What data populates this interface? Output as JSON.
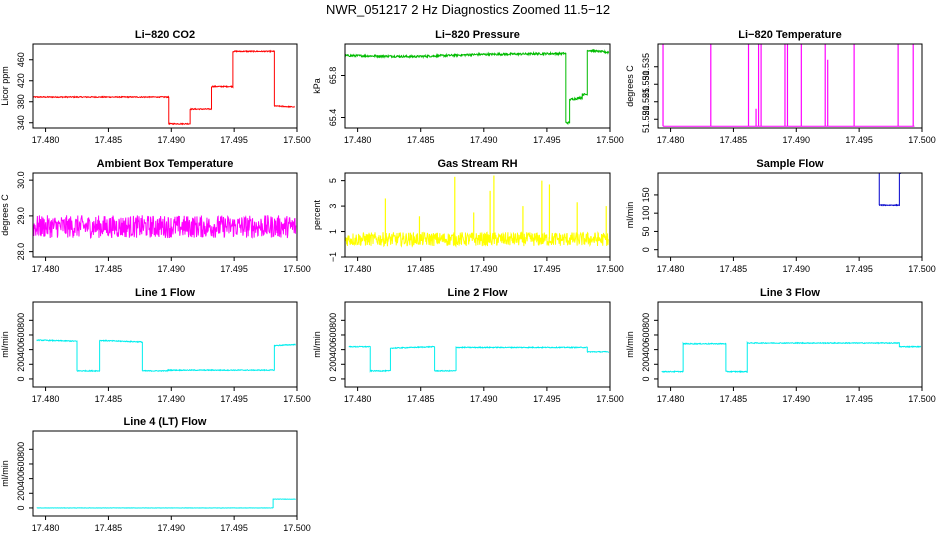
{
  "title": "NWR_051217  2 Hz Diagnostics Zoomed 11.5−12",
  "chart_data": [
    {
      "type": "line",
      "title": "Li−820 CO2",
      "ylabel": "Licor ppm",
      "color": "#ff0000",
      "xlim": [
        17.479,
        17.5
      ],
      "ylim": [
        330,
        490
      ],
      "x_ticks": [
        17.48,
        17.485,
        17.49,
        17.495,
        17.5
      ],
      "x_tick_labels": [
        "17.480",
        "17.485",
        "17.490",
        "17.495",
        "17.500"
      ],
      "y_ticks": [
        340,
        380,
        420,
        460
      ],
      "y_tick_labels": [
        "340",
        "380",
        "420",
        "460"
      ],
      "noise": 1,
      "x": [
        17.479,
        17.4898,
        17.4898,
        17.4915,
        17.4915,
        17.4932,
        17.4932,
        17.4949,
        17.4949,
        17.4982,
        17.4982,
        17.4998
      ],
      "y": [
        389,
        389,
        338,
        338,
        366,
        366,
        409,
        409,
        476,
        476,
        372,
        370
      ]
    },
    {
      "type": "line",
      "title": "Li−820 Pressure",
      "ylabel": "kPa",
      "color": "#00bb00",
      "xlim": [
        17.479,
        17.5
      ],
      "ylim": [
        65.3,
        66.1
      ],
      "x_ticks": [
        17.48,
        17.485,
        17.49,
        17.495,
        17.5
      ],
      "x_tick_labels": [
        "17.480",
        "17.485",
        "17.490",
        "17.495",
        "17.500"
      ],
      "y_ticks": [
        65.4,
        65.8
      ],
      "y_tick_labels": [
        "65.4",
        "65.8"
      ],
      "noise": 0.01,
      "x": [
        17.479,
        17.4845,
        17.4895,
        17.4965,
        17.4965,
        17.4968,
        17.4968,
        17.4978,
        17.4978,
        17.4982,
        17.4982,
        17.4999
      ],
      "y": [
        65.99,
        65.98,
        66.0,
        66.01,
        65.35,
        65.35,
        65.57,
        65.59,
        65.62,
        65.62,
        66.04,
        66.02
      ]
    },
    {
      "type": "line",
      "title": "Li−820 Temperature",
      "ylabel": "degrees C",
      "color": "#ff00ff",
      "xlim": [
        17.479,
        17.5
      ],
      "ylim": [
        51.5175,
        51.5415
      ],
      "x_ticks": [
        17.48,
        17.485,
        17.49,
        17.495,
        17.5
      ],
      "x_tick_labels": [
        "17.480",
        "17.485",
        "17.490",
        "17.495",
        "17.500"
      ],
      "y_ticks": [
        51.52,
        51.525,
        51.53,
        51.535
      ],
      "y_tick_labels": [
        "51.520",
        "51.525",
        "51.530",
        "51.535"
      ],
      "baseline": 51.518,
      "spikes": [
        [
          17.4794,
          51.5415
        ],
        [
          17.4832,
          51.5415
        ],
        [
          17.4862,
          51.5415
        ],
        [
          17.4868,
          51.523
        ],
        [
          17.487,
          51.5415
        ],
        [
          17.4872,
          51.5415
        ],
        [
          17.4891,
          51.5415
        ],
        [
          17.4893,
          51.5415
        ],
        [
          17.4904,
          51.5415
        ],
        [
          17.4923,
          51.5415
        ],
        [
          17.4925,
          51.537
        ],
        [
          17.4946,
          51.5415
        ],
        [
          17.4981,
          51.5415
        ],
        [
          17.4993,
          51.5415
        ]
      ]
    },
    {
      "type": "line",
      "title": "Ambient Box Temperature",
      "ylabel": "degrees C",
      "color": "#ff00ff",
      "xlim": [
        17.479,
        17.5
      ],
      "ylim": [
        27.85,
        30.2
      ],
      "x_ticks": [
        17.48,
        17.485,
        17.49,
        17.495,
        17.5
      ],
      "x_tick_labels": [
        "17.480",
        "17.485",
        "17.490",
        "17.495",
        "17.500"
      ],
      "y_ticks": [
        28.0,
        29.0,
        30.0
      ],
      "y_tick_labels": [
        "28.0",
        "29.0",
        "30.0"
      ],
      "noise": 0.32,
      "x": [
        17.479,
        17.4999
      ],
      "y": [
        28.7,
        28.7
      ]
    },
    {
      "type": "line",
      "title": "Gas Stream RH",
      "ylabel": "percent",
      "color": "#ffff00",
      "xlim": [
        17.479,
        17.5
      ],
      "ylim": [
        -1,
        5.6
      ],
      "x_ticks": [
        17.48,
        17.485,
        17.49,
        17.495,
        17.5
      ],
      "x_tick_labels": [
        "17.480",
        "17.485",
        "17.490",
        "17.495",
        "17.500"
      ],
      "y_ticks": [
        -1,
        1,
        3,
        5
      ],
      "y_tick_labels": [
        "−1",
        "1",
        "3",
        "5"
      ],
      "noise": 0.55,
      "x": [
        17.479,
        17.4999
      ],
      "y": [
        0.4,
        0.4
      ],
      "spikes": [
        [
          17.4822,
          3.6
        ],
        [
          17.4849,
          2.2
        ],
        [
          17.4877,
          5.3
        ],
        [
          17.4892,
          2.5
        ],
        [
          17.4905,
          4.2
        ],
        [
          17.4908,
          5.4
        ],
        [
          17.4931,
          3.0
        ],
        [
          17.4946,
          5.0
        ],
        [
          17.4952,
          4.7
        ],
        [
          17.4974,
          3.3
        ],
        [
          17.4997,
          3.0
        ]
      ]
    },
    {
      "type": "line",
      "title": "Sample Flow",
      "ylabel": "ml/min",
      "color": "#0000cc",
      "xlim": [
        17.479,
        17.5
      ],
      "ylim": [
        -20,
        210
      ],
      "x_ticks": [
        17.48,
        17.485,
        17.49,
        17.495,
        17.5
      ],
      "x_tick_labels": [
        "17.480",
        "17.485",
        "17.490",
        "17.495",
        "17.500"
      ],
      "y_ticks": [
        0,
        50,
        100,
        150
      ],
      "y_tick_labels": [
        "0",
        "50",
        "100",
        "150"
      ],
      "noise": 1.2,
      "x": [
        17.4966,
        17.4966,
        17.4982,
        17.4982,
        17.4984
      ],
      "y": [
        210,
        122,
        122,
        210,
        210
      ]
    },
    {
      "type": "line",
      "title": "Line 1 Flow",
      "ylabel": "ml/min",
      "color": "#00eeee",
      "xlim": [
        17.479,
        17.5
      ],
      "ylim": [
        -110,
        1050
      ],
      "x_ticks": [
        17.48,
        17.485,
        17.49,
        17.495,
        17.5
      ],
      "x_tick_labels": [
        "17.480",
        "17.485",
        "17.490",
        "17.495",
        "17.500"
      ],
      "y_ticks": [
        0,
        200,
        400,
        600,
        800
      ],
      "y_tick_labels": [
        "0",
        "200",
        "400",
        "600",
        "800"
      ],
      "noise": 6,
      "x": [
        17.4793,
        17.4825,
        17.4825,
        17.4843,
        17.4843,
        17.4877,
        17.4877,
        17.4897,
        17.4897,
        17.4982,
        17.4982,
        17.4999
      ],
      "y": [
        530,
        515,
        110,
        110,
        525,
        505,
        110,
        110,
        120,
        120,
        455,
        470
      ]
    },
    {
      "type": "line",
      "title": "Line 2 Flow",
      "ylabel": "ml/min",
      "color": "#00eeee",
      "xlim": [
        17.479,
        17.5
      ],
      "ylim": [
        -110,
        1050
      ],
      "x_ticks": [
        17.48,
        17.485,
        17.49,
        17.495,
        17.5
      ],
      "x_tick_labels": [
        "17.480",
        "17.485",
        "17.490",
        "17.495",
        "17.500"
      ],
      "y_ticks": [
        0,
        200,
        400,
        600,
        800
      ],
      "y_tick_labels": [
        "0",
        "200",
        "400",
        "600",
        "800"
      ],
      "noise": 6,
      "x": [
        17.4793,
        17.481,
        17.481,
        17.4826,
        17.4826,
        17.4861,
        17.4861,
        17.4878,
        17.4878,
        17.4982,
        17.4982,
        17.4999
      ],
      "y": [
        440,
        440,
        110,
        110,
        420,
        440,
        110,
        110,
        430,
        430,
        370,
        370
      ]
    },
    {
      "type": "line",
      "title": "Line 3 Flow",
      "ylabel": "ml/min",
      "color": "#00eeee",
      "xlim": [
        17.479,
        17.5
      ],
      "ylim": [
        -110,
        1050
      ],
      "x_ticks": [
        17.48,
        17.485,
        17.49,
        17.495,
        17.5
      ],
      "x_tick_labels": [
        "17.480",
        "17.485",
        "17.490",
        "17.495",
        "17.500"
      ],
      "y_ticks": [
        0,
        200,
        400,
        600,
        800
      ],
      "y_tick_labels": [
        "0",
        "200",
        "400",
        "600",
        "800"
      ],
      "noise": 6,
      "x": [
        17.4793,
        17.481,
        17.481,
        17.4844,
        17.4844,
        17.4861,
        17.4861,
        17.4982,
        17.4982,
        17.4999
      ],
      "y": [
        100,
        100,
        480,
        480,
        100,
        100,
        490,
        490,
        440,
        440
      ]
    },
    {
      "type": "line",
      "title": "Line 4 (LT) Flow",
      "ylabel": "ml/min",
      "color": "#00eeee",
      "xlim": [
        17.479,
        17.5
      ],
      "ylim": [
        -110,
        1050
      ],
      "x_ticks": [
        17.48,
        17.485,
        17.49,
        17.495,
        17.5
      ],
      "x_tick_labels": [
        "17.480",
        "17.485",
        "17.490",
        "17.495",
        "17.500"
      ],
      "y_ticks": [
        0,
        200,
        400,
        600,
        800
      ],
      "y_tick_labels": [
        "0",
        "200",
        "400",
        "600",
        "800"
      ],
      "noise": 2,
      "x": [
        17.4793,
        17.4981,
        17.4981,
        17.4999
      ],
      "y": [
        0,
        0,
        120,
        120
      ]
    }
  ]
}
